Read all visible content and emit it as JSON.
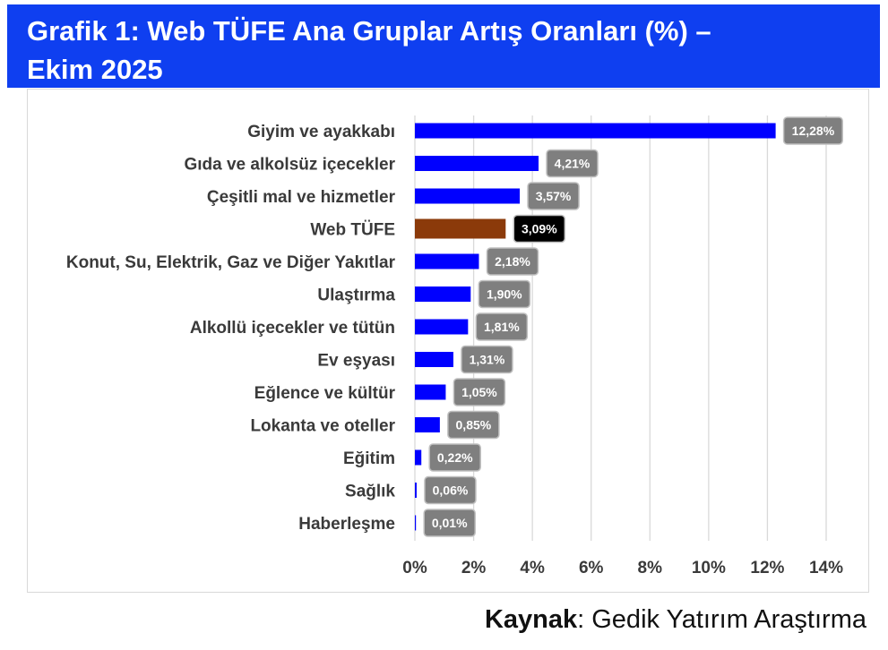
{
  "header": {
    "title_line1": "Grafik 1: Web TÜFE Ana Gruplar Artış Oranları (%) –",
    "title_line2": "Ekim 2025"
  },
  "source": {
    "label": "Kaynak",
    "separator": ": ",
    "text": "Gedik Yatırım Araştırma"
  },
  "colors": {
    "title_bg": "#0f3ff0",
    "bar": "#0000ff",
    "bar_highlight": "#8b3a0a",
    "label_box": "#7f7f7f",
    "label_box_highlight": "#000000",
    "grid": "#d9d9d9"
  },
  "chart_data": {
    "type": "bar",
    "orientation": "horizontal",
    "categories": [
      "Giyim ve ayakkabı",
      "Gıda ve alkolsüz içecekler",
      "Çeşitli mal ve hizmetler",
      "Web TÜFE",
      "Konut, Su, Elektrik, Gaz ve Diğer Yakıtlar",
      "Ulaştırma",
      "Alkollü içecekler ve tütün",
      "Ev eşyası",
      "Eğlence ve kültür",
      "Lokanta ve oteller",
      "Eğitim",
      "Sağlık",
      "Haberleşme"
    ],
    "values": [
      12.28,
      4.21,
      3.57,
      3.09,
      2.18,
      1.9,
      1.81,
      1.31,
      1.05,
      0.85,
      0.22,
      0.06,
      0.01
    ],
    "value_labels": [
      "12,28%",
      "4,21%",
      "3,57%",
      "3,09%",
      "2,18%",
      "1,90%",
      "1,81%",
      "1,31%",
      "1,05%",
      "0,85%",
      "0,22%",
      "0,06%",
      "0,01%"
    ],
    "highlight": "Web TÜFE",
    "xlim": [
      0,
      14
    ],
    "xticks": [
      0,
      2,
      4,
      6,
      8,
      10,
      12,
      14
    ],
    "xtick_labels": [
      "0%",
      "2%",
      "4%",
      "6%",
      "8%",
      "10%",
      "12%",
      "14%"
    ],
    "grid": true,
    "legend": "none"
  }
}
